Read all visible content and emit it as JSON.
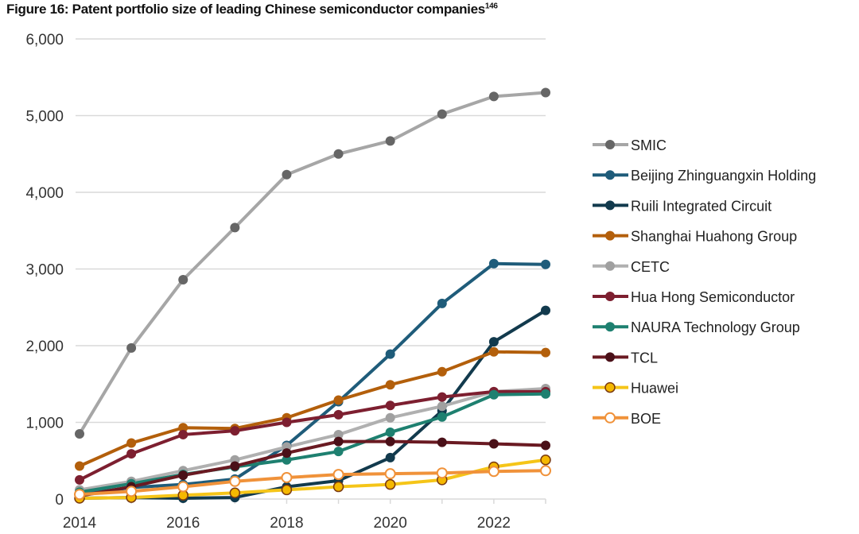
{
  "chart_data": {
    "type": "line",
    "title": "Figure 16: Patent portfolio size of leading Chinese semiconductor companies",
    "title_superscript": "146",
    "xlabel": "",
    "ylabel": "",
    "x": [
      2014,
      2015,
      2016,
      2017,
      2018,
      2019,
      2020,
      2021,
      2022,
      2023
    ],
    "xticks": [
      "2014",
      "2016",
      "2018",
      "2020",
      "2022"
    ],
    "ylim": [
      0,
      6000
    ],
    "yticks": [
      "0",
      "1,000",
      "2,000",
      "3,000",
      "4,000",
      "5,000",
      "6,000"
    ],
    "grid": true,
    "legend_position": "right",
    "series": [
      {
        "name": "SMIC",
        "color": "#a6a6a6",
        "marker": "#666666",
        "hollow": false,
        "values": [
          850,
          1970,
          2860,
          3540,
          4230,
          4500,
          4670,
          5020,
          5250,
          5300
        ]
      },
      {
        "name": "Beijing Zhinguangxin Holding",
        "color": "#1f5c7a",
        "marker": "#1f5c7a",
        "hollow": false,
        "values": [
          60,
          150,
          190,
          260,
          700,
          1270,
          1890,
          2550,
          3070,
          3060
        ]
      },
      {
        "name": "Ruili Integrated Circuit",
        "color": "#123a4d",
        "marker": "#123a4d",
        "hollow": false,
        "values": [
          10,
          20,
          10,
          20,
          160,
          240,
          540,
          1150,
          2050,
          2460
        ]
      },
      {
        "name": "Shanghai Huahong Group",
        "color": "#b35f0b",
        "marker": "#b35f0b",
        "hollow": false,
        "values": [
          430,
          730,
          930,
          920,
          1060,
          1290,
          1490,
          1660,
          1920,
          1910
        ]
      },
      {
        "name": "CETC",
        "color": "#b0b0b0",
        "marker": "#a0a0a0",
        "hollow": false,
        "values": [
          120,
          230,
          370,
          510,
          680,
          840,
          1060,
          1210,
          1400,
          1440
        ]
      },
      {
        "name": "Hua Hong Semiconductor",
        "color": "#7d1f30",
        "marker": "#7d1f30",
        "hollow": false,
        "values": [
          250,
          590,
          840,
          890,
          1000,
          1100,
          1220,
          1330,
          1400,
          1400
        ]
      },
      {
        "name": "NAURA Technology Group",
        "color": "#1e8070",
        "marker": "#1e8070",
        "hollow": false,
        "values": [
          90,
          200,
          320,
          420,
          510,
          620,
          870,
          1070,
          1360,
          1370
        ]
      },
      {
        "name": "TCL",
        "color": "#6a1a22",
        "marker": "#4a1018",
        "hollow": false,
        "values": [
          40,
          160,
          310,
          430,
          600,
          750,
          750,
          740,
          720,
          700
        ]
      },
      {
        "name": "Huawei",
        "color": "#f5c518",
        "marker": "#f5b800",
        "hollow": "ring",
        "values": [
          10,
          20,
          50,
          80,
          120,
          160,
          190,
          250,
          420,
          510
        ]
      },
      {
        "name": "BOE",
        "color": "#f0923a",
        "marker": "#ffffff",
        "hollow": true,
        "values": [
          60,
          100,
          160,
          230,
          280,
          320,
          330,
          340,
          360,
          370
        ]
      }
    ]
  }
}
